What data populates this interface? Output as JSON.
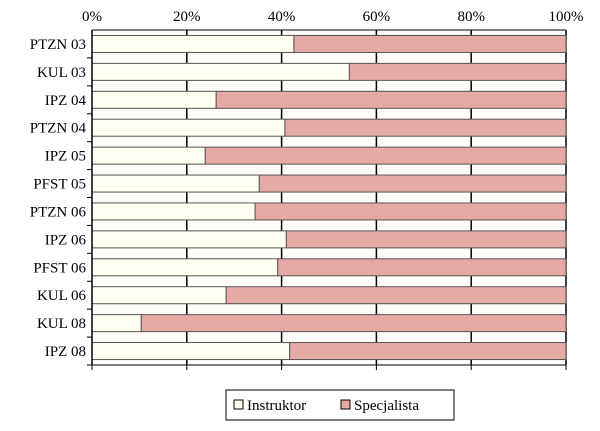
{
  "chart_data": {
    "type": "bar",
    "orientation": "horizontal",
    "stacked": "percent",
    "categories": [
      "PTZN 03",
      "KUL 03",
      "IPZ 04",
      "PTZN 04",
      "IPZ 05",
      "PFST 05",
      "PTZN 06",
      "IPZ 06",
      "PFST 06",
      "KUL 06",
      "KUL 08",
      "IPZ 08"
    ],
    "series": [
      {
        "name": "Instruktor",
        "color": "#fffff2",
        "values": [
          42.6,
          54.3,
          26.2,
          40.7,
          23.9,
          35.3,
          34.4,
          41.0,
          39.2,
          28.3,
          10.4,
          41.7
        ]
      },
      {
        "name": "Specjalista",
        "color": "#e6aaa5",
        "values": [
          57.4,
          45.7,
          73.8,
          59.3,
          76.1,
          64.7,
          65.6,
          59.0,
          60.8,
          71.7,
          89.6,
          58.3
        ]
      }
    ],
    "xticks": [
      "0%",
      "20%",
      "40%",
      "60%",
      "80%",
      "100%"
    ],
    "xlim": [
      0,
      100
    ],
    "grid": true,
    "legend": "bottom"
  }
}
